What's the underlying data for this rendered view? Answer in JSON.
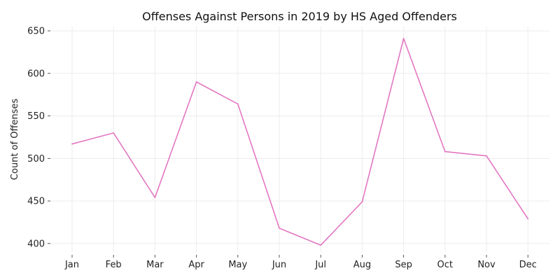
{
  "chart_data": {
    "type": "line",
    "title": "Offenses Against Persons in 2019 by HS Aged Offenders",
    "xlabel": "",
    "ylabel": "Count of Offenses",
    "categories": [
      "Jan",
      "Feb",
      "Mar",
      "Apr",
      "May",
      "Jun",
      "Jul",
      "Aug",
      "Sep",
      "Oct",
      "Nov",
      "Dec"
    ],
    "series": [
      {
        "values": [
          517,
          530,
          454,
          590,
          564,
          418,
          398,
          449,
          641,
          508,
          503,
          429
        ],
        "color": "#e377c2"
      }
    ],
    "ylim": [
      390,
      655
    ],
    "yticks": [
      400,
      450,
      500,
      550,
      600,
      650
    ],
    "grid": true,
    "legend": "none"
  }
}
